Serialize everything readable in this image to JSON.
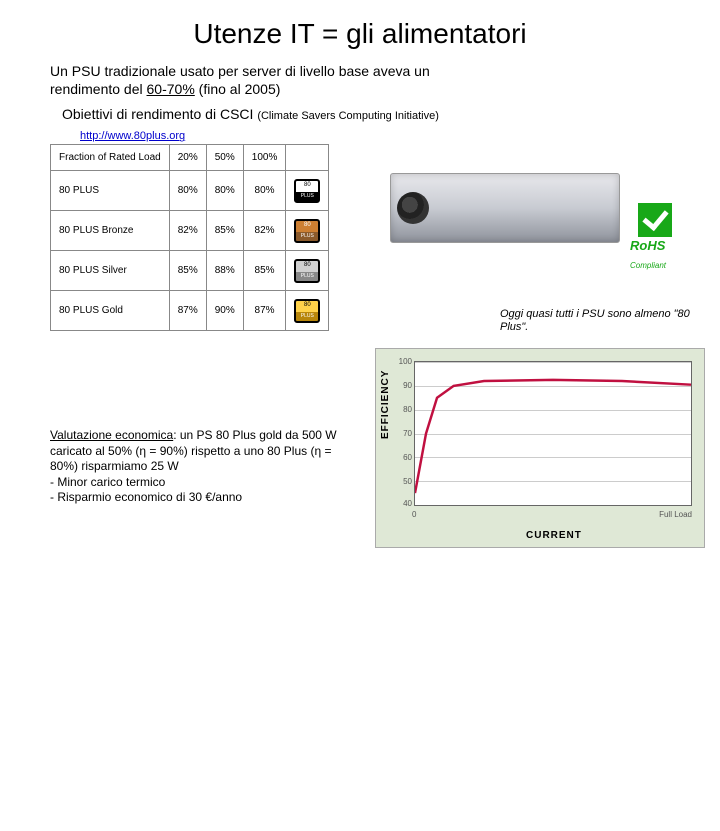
{
  "title": "Utenze IT = gli alimentatori",
  "intro_line1": "Un PSU tradizionale usato per server di livello base aveva un",
  "intro_line2a": "rendimento del ",
  "intro_underline": "60-70%",
  "intro_line2b": " (fino al 2005)",
  "subhead_a": "Obiettivi di rendimento di CSCI ",
  "subhead_small": "(Climate Savers Computing Initiative)",
  "link": "http://www.80plus.org",
  "table": {
    "headers": [
      "Fraction of Rated Load",
      "20%",
      "50%",
      "100%"
    ],
    "rows": [
      {
        "label": "80 PLUS",
        "vals": [
          "80%",
          "80%",
          "80%"
        ],
        "badge": "plain"
      },
      {
        "label": "80 PLUS Bronze",
        "vals": [
          "82%",
          "85%",
          "82%"
        ],
        "badge": "bronze"
      },
      {
        "label": "80 PLUS Silver",
        "vals": [
          "85%",
          "88%",
          "85%"
        ],
        "badge": "silver"
      },
      {
        "label": "80 PLUS Gold",
        "vals": [
          "87%",
          "90%",
          "87%"
        ],
        "badge": "gold"
      }
    ]
  },
  "note": "Oggi quasi tutti i PSU sono almeno \"80 Plus\".",
  "econ": {
    "lead_ul": "Valutazione economica",
    "body": ": un PS 80 Plus gold da 500 W caricato al 50% (η = 90%) rispetto a uno 80 Plus  (η = 80%) risparmiamo 25 W",
    "b1": "- Minor carico termico",
    "b2": "- Risparmio economico di 30 €/anno"
  },
  "rohs": {
    "main": "RoHS",
    "sub": "Compliant"
  },
  "chart": {
    "ylabel": "EFFICIENCY",
    "xlabel": "CURRENT",
    "ylim": [
      40,
      100
    ],
    "ytick_step": 10,
    "xticks": [
      "0",
      "Full Load"
    ],
    "curve_points": [
      [
        0,
        45
      ],
      [
        0.04,
        70
      ],
      [
        0.08,
        85
      ],
      [
        0.14,
        90
      ],
      [
        0.25,
        92
      ],
      [
        0.5,
        92.5
      ],
      [
        0.75,
        92
      ],
      [
        1.0,
        90.5
      ]
    ],
    "curve_color": "#c01040",
    "grid_color": "#cccccc",
    "background_color": "#ffffff",
    "panel_color": "#dfe8d6"
  }
}
